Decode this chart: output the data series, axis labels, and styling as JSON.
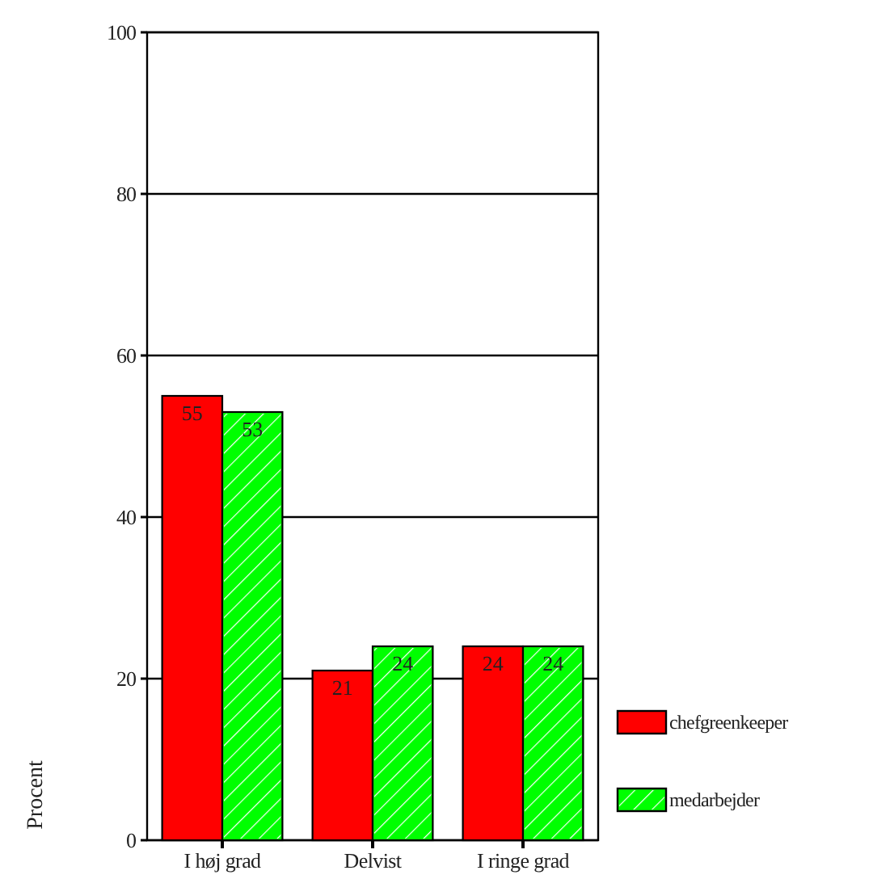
{
  "chart_data": {
    "type": "bar",
    "ylabel": "Procent",
    "categories": [
      "I høj grad",
      "Delvist",
      "I ringe grad"
    ],
    "series": [
      {
        "name": "chefgreenkeeper",
        "color": "#ff0000",
        "values": [
          55,
          21,
          24
        ]
      },
      {
        "name": "medarbejder",
        "color": "#00ff00",
        "values": [
          53,
          24,
          24
        ]
      }
    ],
    "ylim": [
      0,
      100
    ],
    "yticks": [
      0,
      20,
      40,
      60,
      80,
      100
    ],
    "grid": "y",
    "legend": "bottom right",
    "data_labels": true
  }
}
